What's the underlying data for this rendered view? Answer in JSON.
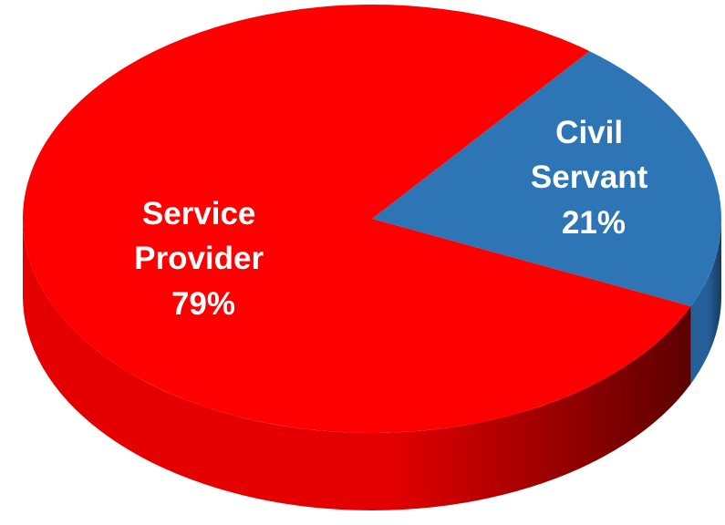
{
  "chart_data": {
    "type": "pie",
    "style": "3d",
    "title": "",
    "legend": "none",
    "slices": [
      {
        "label_lines": [
          "Service",
          "Provider"
        ],
        "value": 79,
        "value_label": "79%",
        "color": "#ff0000",
        "side_color_light": "#e40000",
        "side_color_dark": "#5c0000"
      },
      {
        "label_lines": [
          "Civil",
          "Servant"
        ],
        "value": 21,
        "value_label": "21%",
        "color": "#2e75b6",
        "side_color_light": "#25609a",
        "side_color_dark": "#17395c"
      }
    ]
  }
}
